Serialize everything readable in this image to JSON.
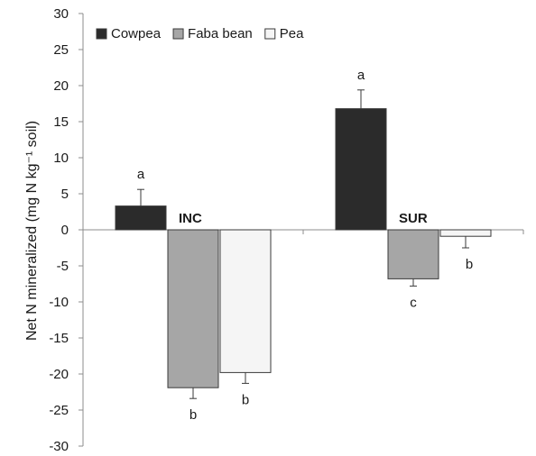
{
  "chart_data": {
    "type": "bar",
    "categories": [
      "INC",
      "SUR"
    ],
    "series": [
      {
        "name": "Cowpea",
        "values": [
          3.3,
          16.8
        ],
        "errors": [
          2.3,
          2.6
        ],
        "sig": [
          "a",
          "a"
        ],
        "color": "#2b2b2b"
      },
      {
        "name": "Faba bean",
        "values": [
          -21.9,
          -6.8
        ],
        "errors": [
          1.5,
          1.0
        ],
        "sig": [
          "b",
          "c"
        ],
        "color": "#a6a6a6"
      },
      {
        "name": "Pea",
        "values": [
          -19.8,
          -0.9
        ],
        "errors": [
          1.5,
          1.6
        ],
        "sig": [
          "b",
          "b"
        ],
        "color": "#f5f5f5"
      }
    ],
    "ylabel": "Net N mineralized (mg N kg⁻¹ soil)",
    "ylim": [
      -30,
      30
    ],
    "yticks": [
      "30",
      "25",
      "20",
      "15",
      "10",
      "5",
      "0",
      "-5",
      "-10",
      "-15",
      "-20",
      "-25",
      "-30"
    ],
    "legend_position": "top-left",
    "grid": false
  }
}
